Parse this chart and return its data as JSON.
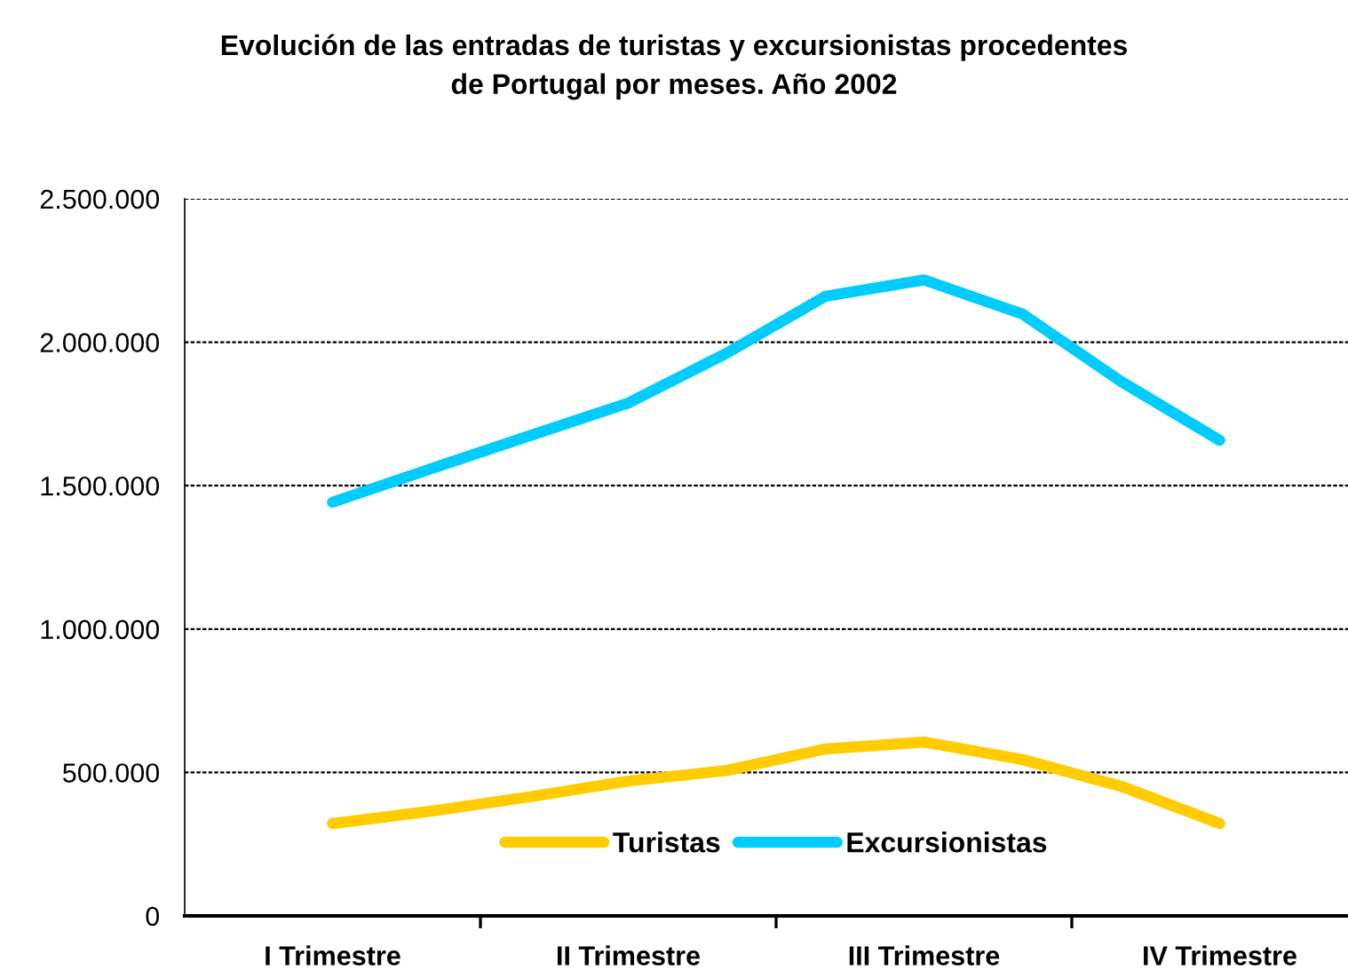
{
  "chart_data": {
    "type": "line",
    "title": "Evolución de las entradas de turistas y excursionistas procedentes\nde Portugal por meses. Año 2002",
    "categories": [
      null,
      "I Trimestre",
      null,
      null,
      "II Trimestre",
      null,
      null,
      "III Trimestre",
      null,
      null,
      "IV Trimestre",
      null
    ],
    "series": [
      {
        "name": "Turistas",
        "color": "#ffcc00",
        "values": [
          null,
          322000,
          365000,
          415000,
          470000,
          507000,
          582000,
          606000,
          545000,
          452000,
          322000,
          null
        ]
      },
      {
        "name": "Excursionistas",
        "color": "#00ccff",
        "values": [
          null,
          1442000,
          1559000,
          1674000,
          1788000,
          1962000,
          2160000,
          2217000,
          2098000,
          1863000,
          1658000,
          null
        ]
      }
    ],
    "ylim": [
      0,
      2500000
    ],
    "yticks": [
      {
        "value": 0,
        "label": "0"
      },
      {
        "value": 500000,
        "label": "500.000"
      },
      {
        "value": 1000000,
        "label": "1.000.000"
      },
      {
        "value": 1500000,
        "label": "1.500.000"
      },
      {
        "value": 2000000,
        "label": "2.000.000"
      },
      {
        "value": 2500000,
        "label": "2.500.000"
      }
    ],
    "grid": "y",
    "legend": "bottom",
    "line_style": "solid",
    "marker": "none"
  }
}
